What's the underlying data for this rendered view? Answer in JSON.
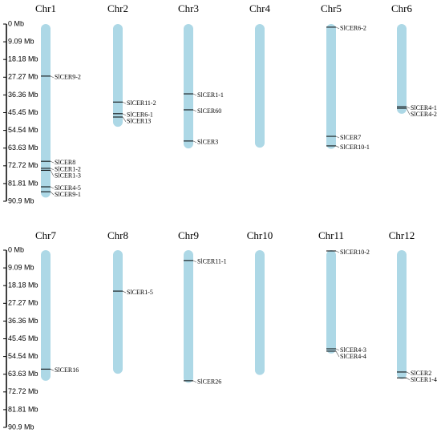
{
  "chart_data": [
    {
      "type": "chromosome-map",
      "ylim": [
        0,
        90.9
      ],
      "color": "#add8e6",
      "yticks": [
        {
          "value": 0,
          "label": "0 Mb"
        },
        {
          "value": 9.09,
          "label": "9.09 Mb"
        },
        {
          "value": 18.18,
          "label": "18.18 Mb"
        },
        {
          "value": 27.27,
          "label": "27.27 Mb"
        },
        {
          "value": 36.36,
          "label": "36.36 Mb"
        },
        {
          "value": 45.45,
          "label": "45.45 Mb"
        },
        {
          "value": 54.54,
          "label": "54.54 Mb"
        },
        {
          "value": 63.63,
          "label": "63.63 Mb"
        },
        {
          "value": 72.72,
          "label": "72.72 Mb"
        },
        {
          "value": 81.81,
          "label": "81.81 Mb"
        },
        {
          "value": 90.9,
          "label": "90.9 Mb"
        }
      ],
      "chromosomes": [
        {
          "name": "Chr1",
          "length": 89,
          "genes": [
            {
              "name": "SlCER9-2",
              "position": 26.7
            },
            {
              "name": "SlCER8",
              "position": 70.4
            },
            {
              "name": "SlCER1-2",
              "position": 74
            },
            {
              "name": "SlCER1-3",
              "position": 75
            },
            {
              "name": "SlCER4-5",
              "position": 83.5
            },
            {
              "name": "SlCER9-1",
              "position": 86
            }
          ]
        },
        {
          "name": "Chr2",
          "length": 52.7,
          "genes": [
            {
              "name": "SlCER11-2",
              "position": 40
            },
            {
              "name": "SlCER6-1",
              "position": 46
            },
            {
              "name": "SlCER13",
              "position": 47.7
            }
          ]
        },
        {
          "name": "Chr3",
          "length": 63.8,
          "genes": [
            {
              "name": "SlCER1-1",
              "position": 35.8
            },
            {
              "name": "SlCER60",
              "position": 44
            },
            {
              "name": "SlCER3",
              "position": 60
            }
          ]
        },
        {
          "name": "Chr4",
          "length": 63.4,
          "genes": []
        },
        {
          "name": "Chr5",
          "length": 64,
          "genes": [
            {
              "name": "SlCER6-2",
              "position": 1.6
            },
            {
              "name": "SlCER7",
              "position": 57.6
            },
            {
              "name": "SlCER10-1",
              "position": 62.5
            }
          ]
        },
        {
          "name": "Chr6",
          "length": 46,
          "genes": [
            {
              "name": "SlCER4-1",
              "position": 42.4
            },
            {
              "name": "SlCER4-2",
              "position": 43.2
            }
          ]
        }
      ]
    },
    {
      "type": "chromosome-map",
      "ylim": [
        0,
        90.9
      ],
      "color": "#add8e6",
      "yticks": [
        {
          "value": 0,
          "label": "0 Mb"
        },
        {
          "value": 9.09,
          "label": "9.09 Mb"
        },
        {
          "value": 18.18,
          "label": "18.18 Mb"
        },
        {
          "value": 27.27,
          "label": "27.27 Mb"
        },
        {
          "value": 36.36,
          "label": "36.36 Mb"
        },
        {
          "value": 45.45,
          "label": "45.45 Mb"
        },
        {
          "value": 54.54,
          "label": "54.54 Mb"
        },
        {
          "value": 63.63,
          "label": "63.63 Mb"
        },
        {
          "value": 72.72,
          "label": "72.72 Mb"
        },
        {
          "value": 81.81,
          "label": "81.81 Mb"
        },
        {
          "value": 90.9,
          "label": "90.9 Mb"
        }
      ],
      "chromosomes": [
        {
          "name": "Chr7",
          "length": 67,
          "genes": [
            {
              "name": "SlCER16",
              "position": 61
            }
          ]
        },
        {
          "name": "Chr8",
          "length": 63.4,
          "genes": [
            {
              "name": "SlCER1-5",
              "position": 21
            }
          ]
        },
        {
          "name": "Chr9",
          "length": 68,
          "genes": [
            {
              "name": "SlCER11-1",
              "position": 5.3
            },
            {
              "name": "SlCER26",
              "position": 67
            }
          ]
        },
        {
          "name": "Chr10",
          "length": 64,
          "genes": []
        },
        {
          "name": "Chr11",
          "length": 53,
          "genes": [
            {
              "name": "SlCER10-2",
              "position": 0.4
            },
            {
              "name": "SlCER4-3",
              "position": 50.6
            },
            {
              "name": "SlCER4-4",
              "position": 51.8
            }
          ]
        },
        {
          "name": "Chr12",
          "length": 66,
          "genes": [
            {
              "name": "SlCER2",
              "position": 62.5
            },
            {
              "name": "SlCER1-4",
              "position": 65.5
            }
          ]
        }
      ]
    }
  ]
}
